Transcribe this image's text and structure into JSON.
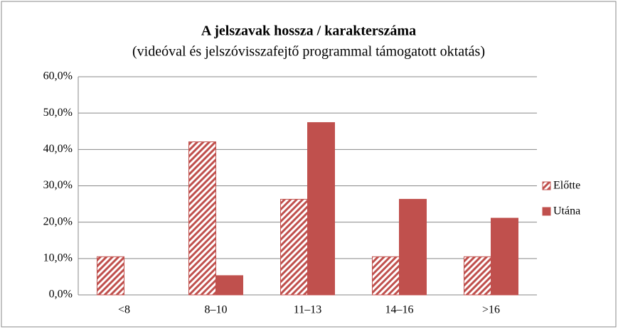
{
  "chart_data": {
    "type": "bar",
    "title": "A jelszavak hossza / karakterszáma",
    "subtitle": "(videóval és jelszóvisszafejtő programmal támogatott oktatás)",
    "categories": [
      "<8",
      "8–10",
      "11–13",
      "14–16",
      ">16"
    ],
    "series": [
      {
        "name": "Előtte",
        "color": "#c0504d",
        "pattern": "hatch",
        "values": [
          10.5,
          42.1,
          26.3,
          10.5,
          10.5
        ]
      },
      {
        "name": "Utána",
        "color": "#c0504d",
        "values": [
          0,
          5.3,
          47.4,
          26.3,
          21.1
        ]
      }
    ],
    "ylim": [
      0,
      60
    ],
    "yticks": [
      {
        "value": 0,
        "label": "0,0%"
      },
      {
        "value": 10,
        "label": "10,0%"
      },
      {
        "value": 20,
        "label": "20,0%"
      },
      {
        "value": 30,
        "label": "30,0%"
      },
      {
        "value": 40,
        "label": "40,0%"
      },
      {
        "value": 50,
        "label": "50,0%"
      },
      {
        "value": 60,
        "label": "60,0%"
      }
    ],
    "grid": true,
    "legend": "right"
  }
}
